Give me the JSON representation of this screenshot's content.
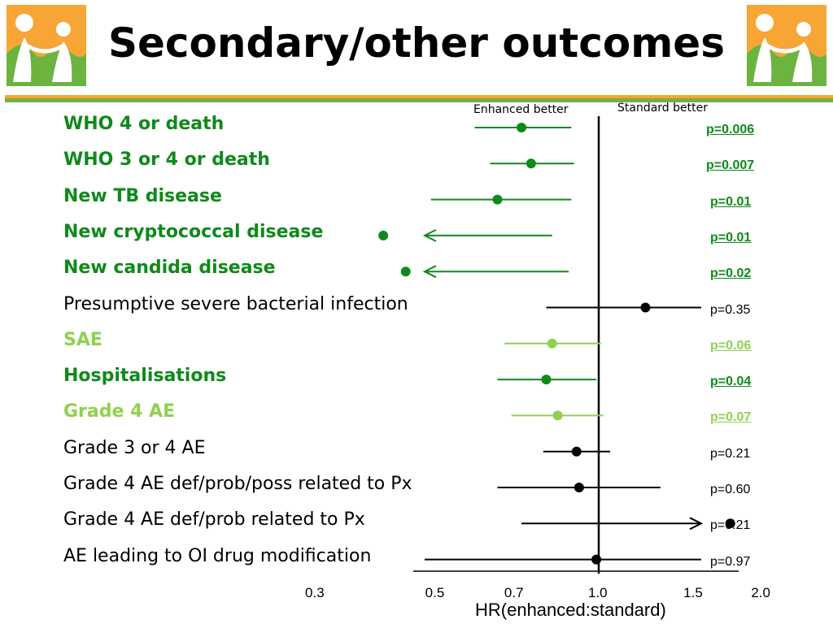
{
  "slide": {
    "title": "Secondary/other outcomes"
  },
  "colors": {
    "dark_green": "#0e8a1a",
    "light_green": "#8fd14f",
    "black": "#000000",
    "logo_orange": "#f7a535",
    "logo_green": "#6db33f",
    "bar_orange": "#f2a62f",
    "bar_green": "#76b043"
  },
  "icons": [
    "family-logo-icon",
    "family-logo-icon"
  ],
  "chart_data": {
    "type": "forest",
    "enhanced_label": "Enhanced better",
    "standard_label": "Standard better",
    "xlabel": "HR(enhanced:standard)",
    "x_scale": "log",
    "xlim": [
      0.25,
      2.2
    ],
    "reference_line": 1.0,
    "ticks": [
      "0.3",
      "0.5",
      "0.7",
      "1.0",
      "1.5",
      "2.0"
    ],
    "tick_values": [
      0.3,
      0.5,
      0.7,
      1.0,
      1.5,
      2.0
    ],
    "rows": [
      {
        "label": "WHO 4 or death",
        "hr": 0.72,
        "lo": 0.59,
        "hi": 0.89,
        "p": "p=0.006",
        "color": "dark",
        "sig": true,
        "arrow_left": false,
        "arrow_right": false
      },
      {
        "label": "WHO 3 or 4 or death",
        "hr": 0.75,
        "lo": 0.63,
        "hi": 0.9,
        "p": "p=0.007",
        "color": "dark",
        "sig": true,
        "arrow_left": false,
        "arrow_right": false
      },
      {
        "label": "New TB disease",
        "hr": 0.65,
        "lo": 0.49,
        "hi": 0.89,
        "p": "p=0.01",
        "color": "dark",
        "sig": true,
        "arrow_left": false,
        "arrow_right": false
      },
      {
        "label": "New cryptococcal disease",
        "hr": 0.4,
        "lo": 0.25,
        "hi": 0.82,
        "p": "p=0.01",
        "color": "dark",
        "sig": true,
        "arrow_left": true,
        "arrow_right": false
      },
      {
        "label": "New candida disease",
        "hr": 0.44,
        "lo": 0.25,
        "hi": 0.88,
        "p": "p=0.02",
        "color": "dark",
        "sig": true,
        "arrow_left": true,
        "arrow_right": false
      },
      {
        "label": "Presumptive severe bacterial infection",
        "hr": 1.22,
        "lo": 0.8,
        "hi": 1.86,
        "p": "p=0.35",
        "color": "black",
        "sig": false,
        "arrow_left": false,
        "arrow_right": false
      },
      {
        "label": "SAE",
        "hr": 0.82,
        "lo": 0.67,
        "hi": 1.01,
        "p": "p=0.06",
        "color": "light",
        "sig": true,
        "arrow_left": false,
        "arrow_right": false
      },
      {
        "label": "Hospitalisations",
        "hr": 0.8,
        "lo": 0.65,
        "hi": 0.99,
        "p": "p=0.04",
        "color": "dark",
        "sig": true,
        "arrow_left": false,
        "arrow_right": false
      },
      {
        "label": "Grade 4 AE",
        "hr": 0.84,
        "lo": 0.69,
        "hi": 1.02,
        "p": "p=0.07",
        "color": "light",
        "sig": true,
        "arrow_left": false,
        "arrow_right": false
      },
      {
        "label": "Grade 3 or 4 AE",
        "hr": 0.91,
        "lo": 0.79,
        "hi": 1.05,
        "p": "p=0.21",
        "color": "black",
        "sig": false,
        "arrow_left": false,
        "arrow_right": false
      },
      {
        "label": "Grade 4 AE def/prob/poss related to Px",
        "hr": 0.92,
        "lo": 0.65,
        "hi": 1.3,
        "p": "p=0.60",
        "color": "black",
        "sig": false,
        "arrow_left": false,
        "arrow_right": false
      },
      {
        "label": "Grade 4 AE def/prob related to Px",
        "hr": 1.75,
        "lo": 0.72,
        "hi": 2.0,
        "p": "p=0.21",
        "color": "black",
        "sig": false,
        "arrow_left": false,
        "arrow_right": true
      },
      {
        "label": "AE leading to OI drug modification",
        "hr": 0.99,
        "lo": 0.47,
        "hi": 2.05,
        "p": "p=0.97",
        "color": "black",
        "sig": false,
        "arrow_left": false,
        "arrow_right": false
      }
    ]
  }
}
